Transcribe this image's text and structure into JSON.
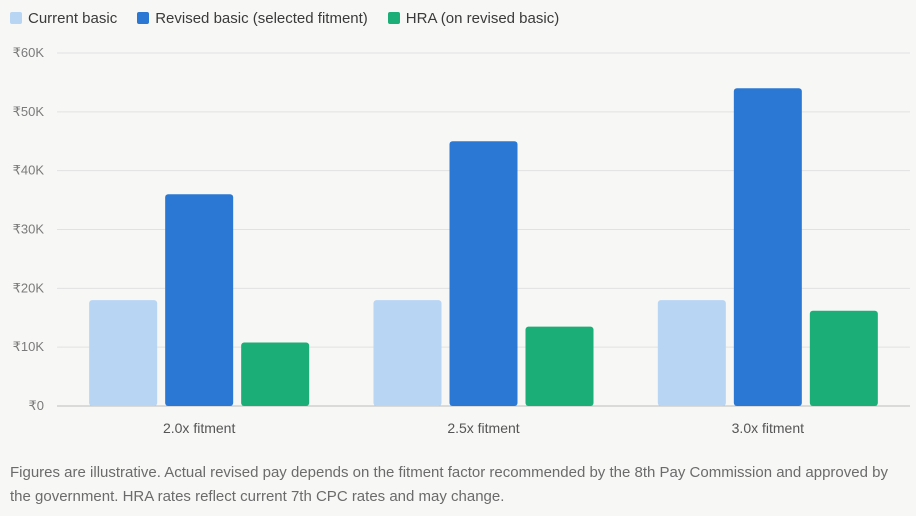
{
  "chart_data": {
    "type": "bar",
    "categories": [
      "2.0x fitment",
      "2.5x fitment",
      "3.0x fitment"
    ],
    "series": [
      {
        "name": "Current basic",
        "color": "#b8d5f3",
        "values": [
          18000,
          18000,
          18000
        ]
      },
      {
        "name": "Revised basic (selected fitment)",
        "color": "#2b78d4",
        "values": [
          36000,
          45000,
          54000
        ]
      },
      {
        "name": "HRA (on revised basic)",
        "color": "#1bae76",
        "values": [
          10800,
          13500,
          16200
        ]
      }
    ],
    "ylim": [
      0,
      60000
    ],
    "yticks": [
      0,
      10000,
      20000,
      30000,
      40000,
      50000,
      60000
    ],
    "ytick_labels": [
      "₹0",
      "₹10K",
      "₹20K",
      "₹30K",
      "₹40K",
      "₹50K",
      "₹60K"
    ],
    "grid": true,
    "legend_position": "top-left"
  },
  "footnote": "Figures are illustrative. Actual revised pay depends on the fitment factor recommended by the 8th Pay Commission and approved by the government. HRA rates reflect current 7th CPC rates and may change."
}
